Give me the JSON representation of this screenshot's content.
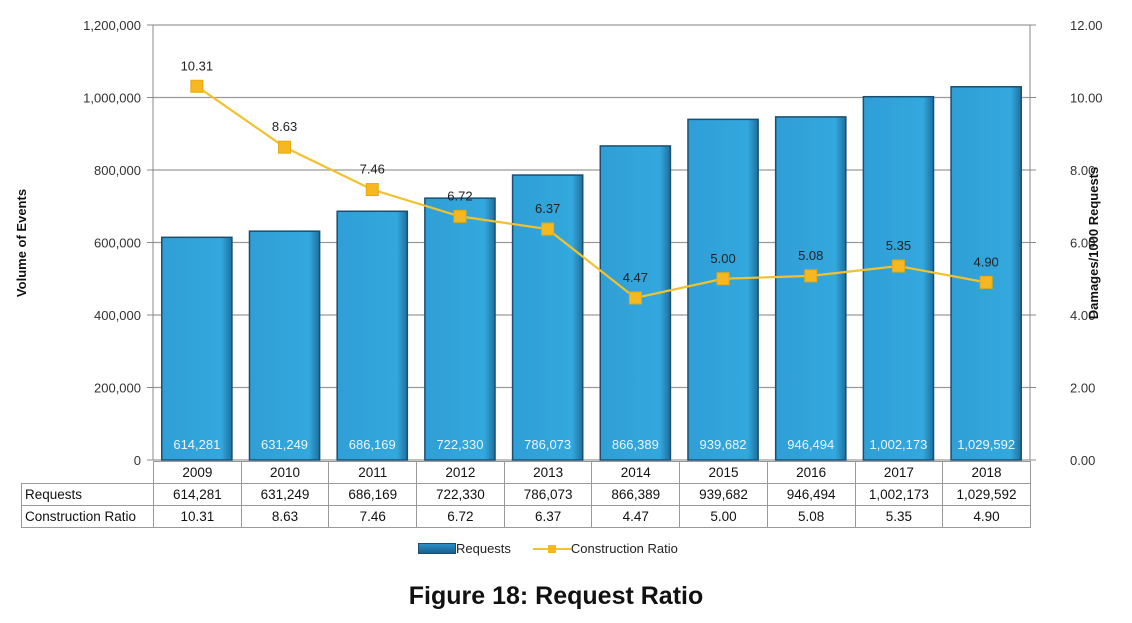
{
  "chart_data": {
    "type": "bar+line",
    "title": "Figure 18: Request Ratio",
    "categories": [
      "2009",
      "2010",
      "2011",
      "2012",
      "2013",
      "2014",
      "2015",
      "2016",
      "2017",
      "2018"
    ],
    "series": [
      {
        "name": "Requests",
        "type": "bar",
        "axis": "left",
        "values": [
          614281,
          631249,
          686169,
          722330,
          786073,
          866389,
          939682,
          946494,
          1002173,
          1029592
        ],
        "labels": [
          "614,281",
          "631,249",
          "686,169",
          "722,330",
          "786,073",
          "866,389",
          "939,682",
          "946,494",
          "1,002,173",
          "1,029,592"
        ],
        "color": "#2ea3d8"
      },
      {
        "name": "Construction Ratio",
        "type": "line",
        "axis": "right",
        "values": [
          10.31,
          8.63,
          7.46,
          6.72,
          6.37,
          4.47,
          5.0,
          5.08,
          5.35,
          4.9
        ],
        "labels": [
          "10.31",
          "8.63",
          "7.46",
          "6.72",
          "6.37",
          "4.47",
          "5.00",
          "5.08",
          "5.35",
          "4.90"
        ],
        "color": "#f2c12e"
      }
    ],
    "ylabel": "Volume of Events",
    "ylabel_right": "Damages/1000 Requests",
    "ylim": [
      0,
      1200000
    ],
    "ylim_right": [
      0,
      12
    ],
    "yticks": [
      "0",
      "200,000",
      "400,000",
      "600,000",
      "800,000",
      "1,000,000",
      "1,200,000"
    ],
    "yticks_right": [
      "0.00",
      "2.00",
      "4.00",
      "6.00",
      "8.00",
      "10.00",
      "12.00"
    ],
    "grid": true,
    "legend_position": "bottom",
    "data_table": {
      "rows": [
        {
          "label": "Requests",
          "values": [
            "614,281",
            "631,249",
            "686,169",
            "722,330",
            "786,073",
            "866,389",
            "939,682",
            "946,494",
            "1,002,173",
            "1,029,592"
          ]
        },
        {
          "label": "Construction Ratio",
          "values": [
            "10.31",
            "8.63",
            "7.46",
            "6.72",
            "6.37",
            "4.47",
            "5.00",
            "5.08",
            "5.35",
            "4.90"
          ]
        }
      ]
    }
  },
  "legend": {
    "requests": "Requests",
    "ratio": "Construction Ratio"
  },
  "caption": "Figure 18: Request Ratio"
}
